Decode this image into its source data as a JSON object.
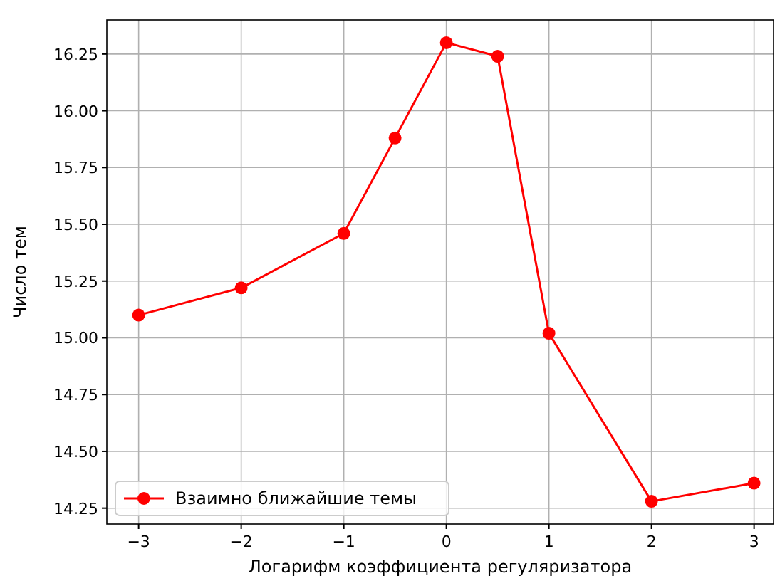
{
  "chart_data": {
    "type": "line",
    "xlabel": "Логарифм коэффициента регуляризатора",
    "ylabel": "Число тем",
    "x": [
      -3,
      -2,
      -1,
      -0.5,
      0,
      0.5,
      1,
      2,
      3
    ],
    "series": [
      {
        "name": "Взаимно ближайшие темы",
        "color": "#ff0000",
        "values": [
          15.1,
          15.22,
          15.46,
          15.88,
          16.3,
          16.24,
          15.02,
          14.28,
          14.36
        ]
      }
    ],
    "xlim": [
      -3.31,
      3.19
    ],
    "xticks": [
      {
        "value": -3,
        "label": "−3"
      },
      {
        "value": -2,
        "label": "−2"
      },
      {
        "value": -1,
        "label": "−1"
      },
      0,
      1,
      2,
      3
    ],
    "ylim": [
      14.18,
      16.4
    ],
    "yticks": [
      {
        "value": 14.25,
        "label": "14.25"
      },
      {
        "value": 14.5,
        "label": "14.50"
      },
      {
        "value": 14.75,
        "label": "14.75"
      },
      {
        "value": 15,
        "label": "15.00"
      },
      {
        "value": 15.25,
        "label": "15.25"
      },
      {
        "value": 15.5,
        "label": "15.50"
      },
      {
        "value": 15.75,
        "label": "15.75"
      },
      {
        "value": 16,
        "label": "16.00"
      },
      {
        "value": 16.25,
        "label": "16.25"
      }
    ],
    "grid": true,
    "legend": "bottom left",
    "marker": "circle",
    "line_style": "solid"
  }
}
